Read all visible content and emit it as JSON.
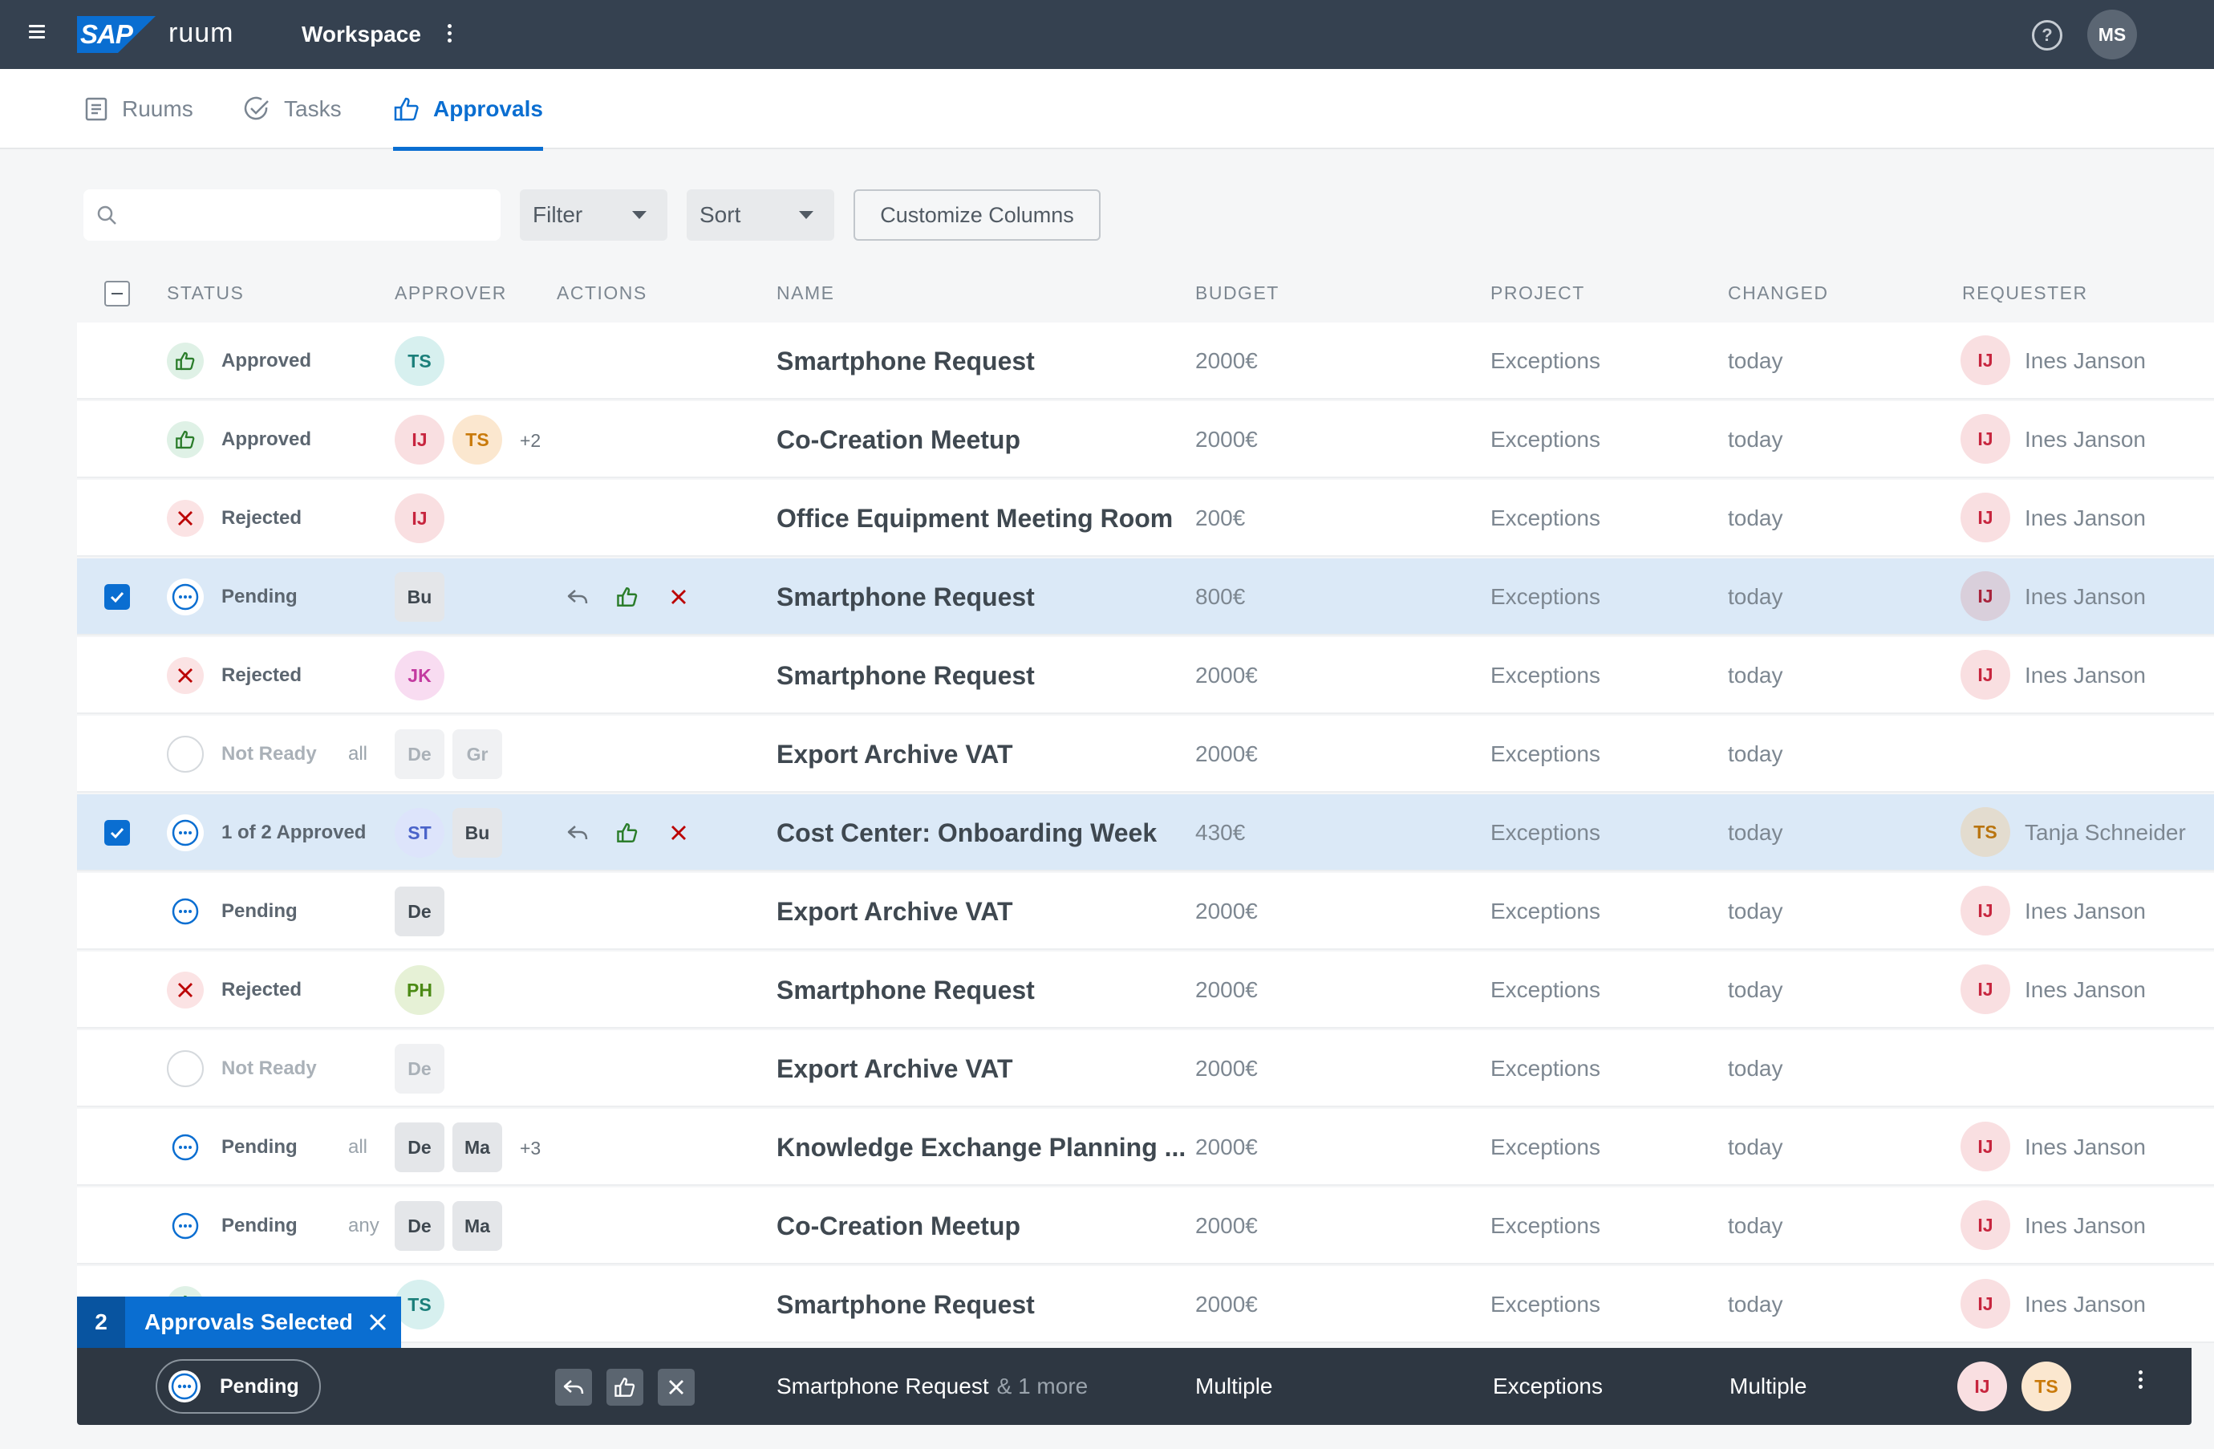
{
  "shell": {
    "logo": "SAP",
    "product": "ruum",
    "title": "Workspace",
    "user_initials": "MS",
    "help": "?"
  },
  "tabs": [
    {
      "label": "Ruums",
      "icon": "document-icon",
      "active": false
    },
    {
      "label": "Tasks",
      "icon": "check-circle-icon",
      "active": false
    },
    {
      "label": "Approvals",
      "icon": "thumbs-up-icon",
      "active": true
    }
  ],
  "toolbar": {
    "search_placeholder": "",
    "filter_label": "Filter",
    "sort_label": "Sort",
    "customize_label": "Customize Columns"
  },
  "columns": {
    "status": "STATUS",
    "approver": "APPROVER",
    "actions": "ACTIONS",
    "name": "NAME",
    "budget": "BUDGET",
    "project": "PROJECT",
    "changed": "CHANGED",
    "requester": "REQUESTER"
  },
  "rows": [
    {
      "status": "Approved",
      "status_type": "approved",
      "mode": "",
      "approvers": [
        {
          "initials": "TS",
          "style": "teal"
        }
      ],
      "more": "",
      "selected": false,
      "name": "Smartphone Request",
      "budget": "2000€",
      "project": "Exceptions",
      "changed": "today",
      "requester_initials": "IJ",
      "requester": "Ines Janson",
      "requester_style": "red"
    },
    {
      "status": "Approved",
      "status_type": "approved",
      "mode": "",
      "approvers": [
        {
          "initials": "IJ",
          "style": "red"
        },
        {
          "initials": "TS",
          "style": "orange"
        }
      ],
      "more": "+2",
      "selected": false,
      "name": "Co-Creation Meetup",
      "budget": "2000€",
      "project": "Exceptions",
      "changed": "today",
      "requester_initials": "IJ",
      "requester": "Ines Janson",
      "requester_style": "red"
    },
    {
      "status": "Rejected",
      "status_type": "rejected",
      "mode": "",
      "approvers": [
        {
          "initials": "IJ",
          "style": "red"
        }
      ],
      "more": "",
      "selected": false,
      "name": "Office Equipment Meeting Room",
      "budget": "200€",
      "project": "Exceptions",
      "changed": "today",
      "requester_initials": "IJ",
      "requester": "Ines Janson",
      "requester_style": "red"
    },
    {
      "status": "Pending",
      "status_type": "pending",
      "mode": "",
      "approvers": [
        {
          "initials": "Bu",
          "style": "grey-sq"
        }
      ],
      "more": "",
      "selected": true,
      "name": "Smartphone Request",
      "budget": "800€",
      "project": "Exceptions",
      "changed": "today",
      "requester_initials": "IJ",
      "requester": "Ines Janson",
      "requester_style": "red-sel"
    },
    {
      "status": "Rejected",
      "status_type": "rejected",
      "mode": "",
      "approvers": [
        {
          "initials": "JK",
          "style": "pink"
        }
      ],
      "more": "",
      "selected": false,
      "name": "Smartphone Request",
      "budget": "2000€",
      "project": "Exceptions",
      "changed": "today",
      "requester_initials": "IJ",
      "requester": "Ines Janson",
      "requester_style": "red"
    },
    {
      "status": "Not Ready",
      "status_type": "notready",
      "mode": "all",
      "approvers": [
        {
          "initials": "De",
          "style": "faded-sq"
        },
        {
          "initials": "Gr",
          "style": "faded-sq"
        }
      ],
      "more": "",
      "selected": false,
      "name": "Export Archive VAT",
      "budget": "2000€",
      "project": "Exceptions",
      "changed": "today",
      "requester_initials": "",
      "requester": "",
      "requester_style": ""
    },
    {
      "status": "1 of 2 Approved",
      "status_type": "pending",
      "mode": "",
      "approvers": [
        {
          "initials": "ST",
          "style": "blue"
        },
        {
          "initials": "Bu",
          "style": "grey-sq"
        }
      ],
      "more": "",
      "selected": true,
      "name": "Cost Center: Onboarding Week",
      "budget": "430€",
      "project": "Exceptions",
      "changed": "today",
      "requester_initials": "TS",
      "requester": "Tanja Schneider",
      "requester_style": "orange-sel"
    },
    {
      "status": "Pending",
      "status_type": "pending",
      "mode": "",
      "approvers": [
        {
          "initials": "De",
          "style": "grey-sq"
        }
      ],
      "more": "",
      "selected": false,
      "name": "Export Archive VAT",
      "budget": "2000€",
      "project": "Exceptions",
      "changed": "today",
      "requester_initials": "IJ",
      "requester": "Ines Janson",
      "requester_style": "red"
    },
    {
      "status": "Rejected",
      "status_type": "rejected",
      "mode": "",
      "approvers": [
        {
          "initials": "PH",
          "style": "green"
        }
      ],
      "more": "",
      "selected": false,
      "name": "Smartphone Request",
      "budget": "2000€",
      "project": "Exceptions",
      "changed": "today",
      "requester_initials": "IJ",
      "requester": "Ines Janson",
      "requester_style": "red"
    },
    {
      "status": "Not Ready",
      "status_type": "notready",
      "mode": "",
      "approvers": [
        {
          "initials": "De",
          "style": "faded-sq"
        }
      ],
      "more": "",
      "selected": false,
      "name": "Export Archive VAT",
      "budget": "2000€",
      "project": "Exceptions",
      "changed": "today",
      "requester_initials": "",
      "requester": "",
      "requester_style": ""
    },
    {
      "status": "Pending",
      "status_type": "pending",
      "mode": "all",
      "approvers": [
        {
          "initials": "De",
          "style": "grey-sq"
        },
        {
          "initials": "Ma",
          "style": "grey-sq"
        }
      ],
      "more": "+3",
      "selected": false,
      "name": "Knowledge Exchange Planning ...",
      "budget": "2000€",
      "project": "Exceptions",
      "changed": "today",
      "requester_initials": "IJ",
      "requester": "Ines Janson",
      "requester_style": "red"
    },
    {
      "status": "Pending",
      "status_type": "pending",
      "mode": "any",
      "approvers": [
        {
          "initials": "De",
          "style": "grey-sq"
        },
        {
          "initials": "Ma",
          "style": "grey-sq"
        }
      ],
      "more": "",
      "selected": false,
      "name": "Co-Creation Meetup",
      "budget": "2000€",
      "project": "Exceptions",
      "changed": "today",
      "requester_initials": "IJ",
      "requester": "Ines Janson",
      "requester_style": "red"
    },
    {
      "status": "",
      "status_type": "approved",
      "mode": "",
      "approvers": [
        {
          "initials": "TS",
          "style": "teal"
        }
      ],
      "more": "",
      "selected": false,
      "name": "Smartphone Request",
      "budget": "2000€",
      "project": "Exceptions",
      "changed": "today",
      "requester_initials": "IJ",
      "requester": "Ines Janson",
      "requester_style": "red"
    }
  ],
  "selection": {
    "count": "2",
    "label": "Approvals Selected",
    "status": "Pending",
    "name": "Smartphone Request",
    "name_suffix": "& 1 more",
    "budget": "Multiple",
    "project": "Exceptions",
    "changed": "Multiple",
    "requesters": [
      {
        "initials": "IJ",
        "style": "red"
      },
      {
        "initials": "TS",
        "style": "orange"
      }
    ]
  },
  "colors": {
    "accent": "#0a6ed1",
    "shell": "#354150",
    "approved": "#2b7d2b",
    "rejected": "#bb0000",
    "selected_row": "#dbe9f7"
  }
}
